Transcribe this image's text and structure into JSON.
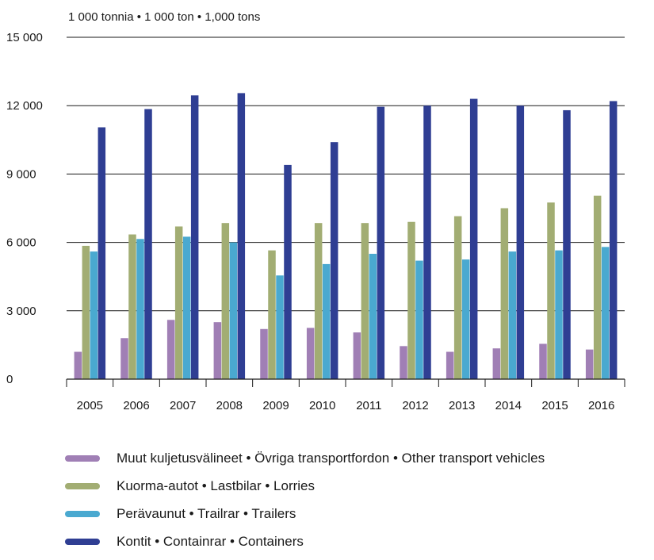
{
  "chart_data": {
    "type": "bar",
    "unit_label": "1 000 tonnia  •  1 000 ton  •  1,000 tons",
    "categories": [
      "2005",
      "2006",
      "2007",
      "2008",
      "2009",
      "2010",
      "2011",
      "2012",
      "2013",
      "2014",
      "2015",
      "2016"
    ],
    "ylim": [
      0,
      15000
    ],
    "yticks": [
      0,
      3000,
      6000,
      9000,
      12000,
      15000
    ],
    "ytick_labels": [
      "0",
      "3 000",
      "6 000",
      "9 000",
      "12 000",
      "15 000"
    ],
    "grid": true,
    "legend_position": "bottom",
    "series": [
      {
        "name": "Muut kuljetusvälineet • Övriga transportfordon • Other transport vehicles",
        "color": "#a07fb5",
        "values": [
          1200,
          1800,
          2600,
          2500,
          2200,
          2250,
          2050,
          1450,
          1200,
          1350,
          1550,
          1300
        ]
      },
      {
        "name": "Kuorma-autot • Lastbilar • Lorries",
        "color": "#a2ad73",
        "values": [
          5850,
          6350,
          6700,
          6850,
          5650,
          6850,
          6850,
          6900,
          7150,
          7500,
          7750,
          8050
        ]
      },
      {
        "name": "Perävaunut • Trailrar • Trailers",
        "color": "#4aa9d0",
        "values": [
          5600,
          6150,
          6250,
          6000,
          4550,
          5050,
          5500,
          5200,
          5250,
          5600,
          5650,
          5800
        ]
      },
      {
        "name": "Kontit • Containrar • Containers",
        "color": "#2f3e93",
        "values": [
          11050,
          11850,
          12450,
          12550,
          9400,
          10400,
          11950,
          12000,
          12300,
          12000,
          11800,
          12200
        ]
      }
    ]
  }
}
